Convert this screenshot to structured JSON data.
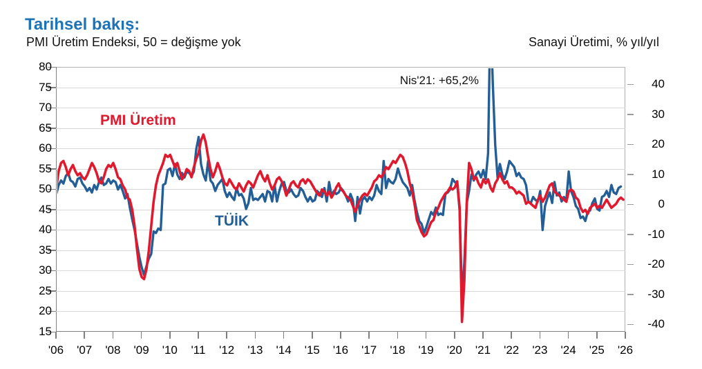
{
  "header": {
    "title": "Tarihsel bakış:",
    "subtitle_left": "PMI Üretim Endeksi, 50 = değişme yok",
    "subtitle_right": "Sanayi Üretimi, % yıl/yıl"
  },
  "series_labels": {
    "pmi": "PMI Üretim",
    "tuik": "TÜİK"
  },
  "annotation": {
    "text": "Nis'21: +65,2%"
  },
  "colors": {
    "title_blue": "#1e73b8",
    "pmi_red": "#e0192e",
    "tuik_blue": "#235e96",
    "gridline": "#d8d8d8",
    "axis_gray": "#7f7f7f"
  },
  "chart_data": {
    "type": "line",
    "title": "Tarihsel bakış:",
    "left_axis": {
      "label": "PMI Üretim Endeksi, 50 = değişme yok",
      "ticks": [
        80,
        75,
        70,
        65,
        60,
        55,
        50,
        45,
        40,
        35,
        30,
        25,
        20,
        15
      ],
      "range": [
        15,
        80
      ],
      "reference_note": "50 = no change"
    },
    "right_axis": {
      "label": "Sanayi Üretimi, % yıl/yıl",
      "ticks": [
        40,
        30,
        20,
        10,
        0,
        -10,
        -20,
        -30,
        -40
      ],
      "range": [
        -40,
        40
      ]
    },
    "x_axis": {
      "tick_labels": [
        "'06",
        "'07",
        "'08",
        "'09",
        "'10",
        "'11",
        "'12",
        "'13",
        "'14",
        "'15",
        "'16",
        "'17",
        "'18",
        "'19",
        "'20",
        "'21",
        "'22",
        "'23",
        "'24",
        "'25",
        "'26"
      ],
      "start": "2006-01",
      "frequency": "monthly"
    },
    "grid": true,
    "legend_position": "inline-labels",
    "annotations": [
      {
        "text": "Nis'21: +65,2%",
        "x": "2021-04",
        "series": "TÜİK",
        "value": 65.2
      }
    ],
    "series": [
      {
        "name": "PMI Üretim",
        "axis": "left",
        "color": "#e0192e",
        "start": "2006-01",
        "monthly_values": [
          50.5,
          54.5,
          56.5,
          57,
          55.5,
          53.5,
          55,
          56,
          54.5,
          53.5,
          54,
          53,
          52.5,
          53.5,
          55,
          56.5,
          55.5,
          54,
          52,
          51.5,
          53,
          55,
          56,
          55.5,
          56.5,
          55,
          53,
          52.5,
          51,
          50,
          48,
          47.5,
          45,
          41,
          35.5,
          30.5,
          28.5,
          28,
          30.5,
          35,
          41,
          47,
          51,
          53.5,
          55,
          56.5,
          58.5,
          58,
          58.5,
          57,
          55.5,
          56.5,
          54.5,
          52.5,
          53.5,
          55,
          54.5,
          53,
          55.5,
          57.5,
          59,
          62,
          63.5,
          61.5,
          58,
          55,
          53,
          54.5,
          56.5,
          55,
          53,
          51.5,
          51,
          52.5,
          51.5,
          50.5,
          50,
          51.5,
          50.5,
          49.5,
          51,
          52,
          51.5,
          50.5,
          52,
          53.5,
          54.5,
          53,
          52,
          53.5,
          51.5,
          50,
          51,
          52.5,
          53,
          52,
          50.5,
          48.5,
          50,
          51.5,
          52,
          51,
          50.5,
          52,
          52.5,
          51.5,
          52.5,
          52,
          51,
          50,
          49,
          48.5,
          50,
          49.5,
          48.5,
          49.5,
          48,
          49,
          50.5,
          51.5,
          50,
          49.5,
          48.5,
          48,
          47.5,
          46,
          44.5,
          46,
          47.5,
          48.5,
          49,
          48.5,
          49.5,
          50.5,
          52,
          52.5,
          53.5,
          53,
          54,
          55.5,
          55,
          56,
          57,
          56.5,
          57.5,
          58.5,
          58,
          56.5,
          54.5,
          51.5,
          49.5,
          46.5,
          42.5,
          41,
          39.5,
          38.5,
          39,
          40.5,
          42,
          42.5,
          44.5,
          45.5,
          47,
          48,
          49,
          49.5,
          50.5,
          50,
          50.5,
          52,
          45.5,
          17.5,
          27.5,
          46.5,
          56.5,
          55,
          52.5,
          53,
          51.5,
          50.5,
          52.5,
          51.5,
          52.5,
          50.5,
          49.5,
          51.5,
          52.5,
          54,
          52.5,
          51.5,
          52,
          50.5,
          50.5,
          50,
          49,
          49.5,
          49,
          48.5,
          46.5,
          47,
          46.5,
          46,
          45.5,
          47.5,
          48.5,
          47,
          48,
          49.5,
          51,
          51.5,
          49.5,
          49,
          48.5,
          48,
          47.5,
          47,
          49.5,
          50,
          49.5,
          48,
          47.5,
          45.5,
          44.5,
          45,
          44,
          45.5,
          46,
          46.5,
          45.5,
          46,
          45.5,
          46.5,
          47.5,
          46.5,
          45.5,
          46,
          46.5,
          47.5,
          48,
          47.5
        ]
      },
      {
        "name": "TÜİK",
        "axis": "right",
        "color": "#235e96",
        "start": "2006-01",
        "monthly_values": [
          3.5,
          6.5,
          8,
          7,
          9.5,
          10.5,
          8,
          7.5,
          6,
          8.5,
          9,
          7,
          6,
          4.5,
          5.5,
          4,
          6.5,
          5,
          7.5,
          9,
          6.5,
          7,
          8.5,
          7,
          8,
          7.5,
          5,
          6.5,
          4.5,
          2,
          3.5,
          -1,
          -5,
          -8.5,
          -13,
          -17.5,
          -21,
          -23.5,
          -20.5,
          -18,
          -16.5,
          -9,
          -9.5,
          -8,
          -8.5,
          6.5,
          7,
          11.5,
          12,
          9.5,
          13.5,
          10,
          8.5,
          10.5,
          9,
          11,
          10.5,
          9.5,
          11,
          18.5,
          22.5,
          13.5,
          10,
          8,
          14.5,
          8,
          7,
          4.5,
          6.5,
          7.5,
          8.5,
          4.5,
          2.5,
          4,
          2.5,
          1.5,
          5.5,
          3,
          3.5,
          2,
          -1.5,
          0.5,
          5.5,
          1.5,
          2,
          1.5,
          2.5,
          3.5,
          1,
          4.5,
          4,
          1,
          6.5,
          1,
          4.5,
          7,
          7.5,
          4.5,
          4,
          5,
          3.5,
          2.5,
          3,
          5.5,
          4.5,
          2.5,
          1,
          2.5,
          1,
          1.5,
          4.5,
          3.5,
          2.5,
          5.5,
          1,
          7.5,
          3,
          4.5,
          3.5,
          4,
          5.5,
          4.5,
          3,
          1,
          3.5,
          1.5,
          -5.5,
          2.5,
          -3,
          1.5,
          2.5,
          1,
          2.5,
          1.5,
          3,
          6.5,
          4.5,
          3.5,
          14.5,
          5.5,
          8.5,
          7.5,
          7,
          8.5,
          12,
          9.5,
          7.5,
          6.5,
          5.5,
          3,
          6.5,
          1.5,
          -2.5,
          -5.5,
          -6.5,
          -9.5,
          -7.5,
          -5,
          -2.5,
          -3.5,
          -1,
          -3.5,
          -3,
          -3.5,
          3.5,
          4,
          5,
          8.5,
          7.5,
          7,
          -2,
          -30.5,
          -19.5,
          0.5,
          4.5,
          10,
          8,
          10,
          11,
          9,
          11.5,
          8.5,
          17,
          65.2,
          40.5,
          20,
          9,
          13.5,
          10,
          8.5,
          11,
          14.5,
          13.5,
          12.5,
          9.5,
          10.5,
          9,
          8.5,
          6.5,
          1,
          0.5,
          2.5,
          1.5,
          1,
          4.5,
          -8.5,
          -0.5,
          2,
          4,
          0.5,
          7.5,
          3,
          4,
          1,
          2.5,
          1.5,
          11,
          4.5,
          2.5,
          -0.5,
          -1.5,
          -4.5,
          -4,
          -5.5,
          -2.5,
          -2,
          0.5,
          2,
          -1.5,
          -2,
          2.5,
          3,
          4.5,
          2.5,
          6.5,
          4,
          3.5,
          5.5,
          6
        ]
      }
    ]
  }
}
